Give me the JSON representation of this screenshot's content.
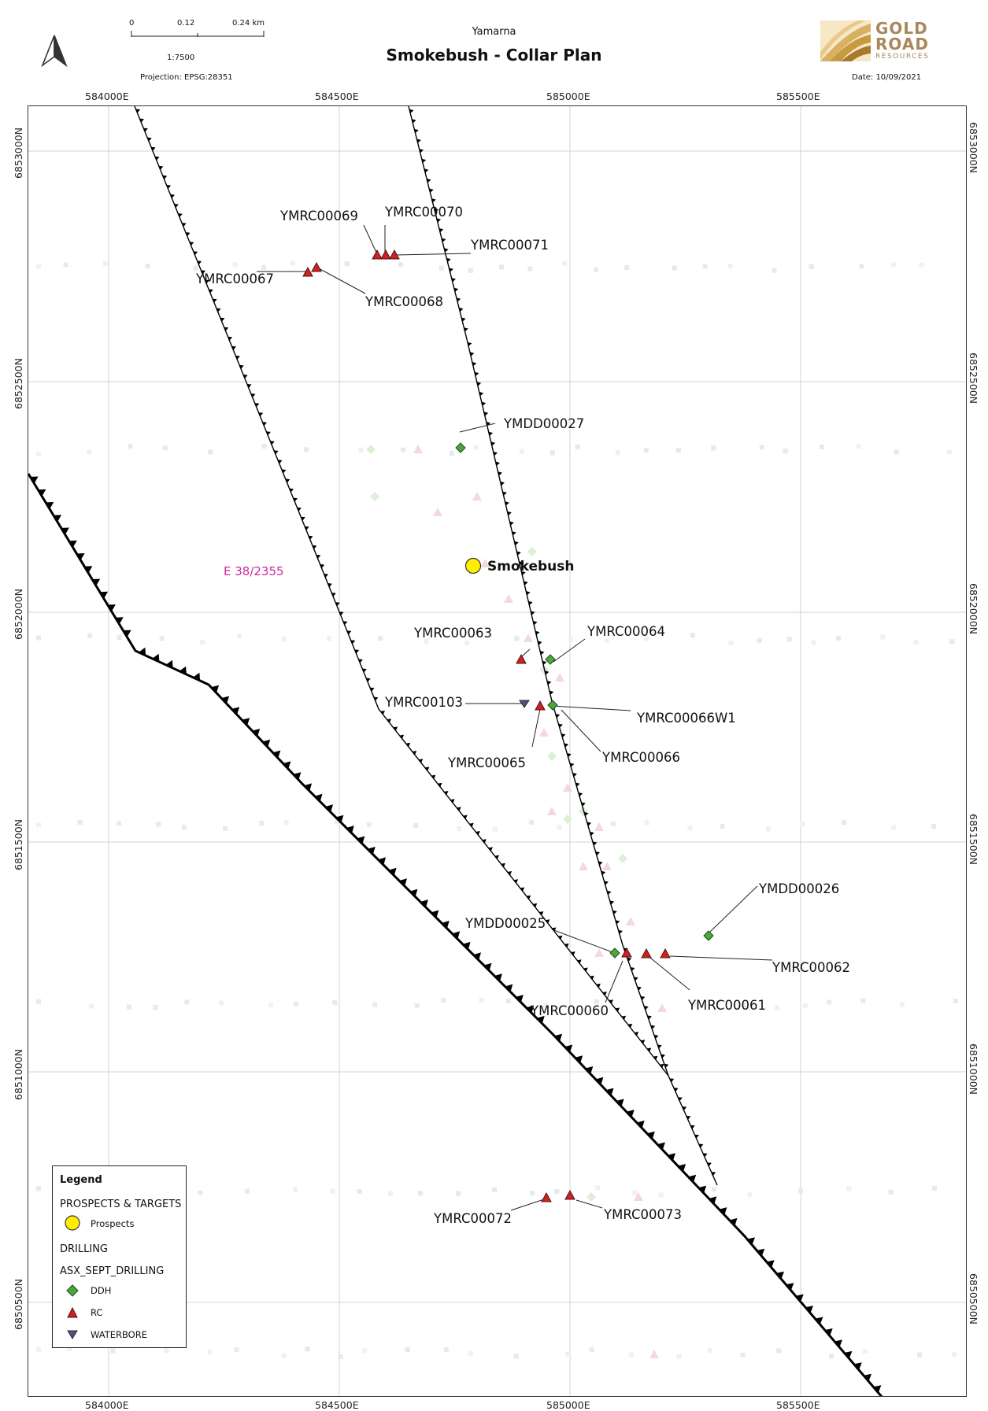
{
  "header": {
    "subtitle": "Yamarna",
    "title": "Smokebush - Collar Plan",
    "projection": "Projection: EPSG:28351",
    "date": "Date: 10/09/2021",
    "scale": {
      "ratio": "1:7500",
      "ticks": [
        "0",
        "0.12",
        "0.24 km"
      ]
    },
    "logo": {
      "line1": "GOLD",
      "line2": "ROAD",
      "line3": "RESOURCES",
      "color": "#a8885a"
    }
  },
  "map": {
    "easting_labels_top": [
      "584000E",
      "584500E",
      "585000E",
      "585500E"
    ],
    "easting_labels_bottom": [
      "584000E",
      "584500E",
      "585000E",
      "585500E"
    ],
    "northing_labels": [
      "6853000N",
      "6852500N",
      "6852000N",
      "6851500N",
      "6851000N",
      "6850500N"
    ],
    "tenement_label": "E 38/2355",
    "prospect": {
      "name": "Smokebush",
      "color": "#ffee00"
    },
    "colors": {
      "rc": "#cc2222",
      "ddh": "#4aa83a",
      "waterbore": "#55507a",
      "tenement": "#cc2ba0"
    },
    "holes": [
      {
        "id": "YMRC00069",
        "type": "RC"
      },
      {
        "id": "YMRC00070",
        "type": "RC"
      },
      {
        "id": "YMRC00071",
        "type": "RC"
      },
      {
        "id": "YMRC00067",
        "type": "RC"
      },
      {
        "id": "YMRC00068",
        "type": "RC"
      },
      {
        "id": "YMDD00027",
        "type": "DDH"
      },
      {
        "id": "YMRC00063",
        "type": "RC"
      },
      {
        "id": "YMRC00064",
        "type": "DDH"
      },
      {
        "id": "YMRC00103",
        "type": "WATERBORE"
      },
      {
        "id": "YMRC00066W1",
        "type": "DDH"
      },
      {
        "id": "YMRC00065",
        "type": "RC"
      },
      {
        "id": "YMRC00066",
        "type": "RC"
      },
      {
        "id": "YMDD00026",
        "type": "DDH"
      },
      {
        "id": "YMDD00025",
        "type": "DDH"
      },
      {
        "id": "YMRC00062",
        "type": "RC"
      },
      {
        "id": "YMRC00060",
        "type": "RC"
      },
      {
        "id": "YMRC00061",
        "type": "RC"
      },
      {
        "id": "YMRC00072",
        "type": "RC"
      },
      {
        "id": "YMRC00073",
        "type": "RC"
      }
    ]
  },
  "legend": {
    "title": "Legend",
    "group1": "PROSPECTS & TARGETS",
    "item_prospects": "Prospects",
    "group2": "DRILLING",
    "group3": "ASX_SEPT_DRILLING",
    "item_ddh": "DDH",
    "item_rc": "RC",
    "item_waterbore": "WATERBORE"
  }
}
